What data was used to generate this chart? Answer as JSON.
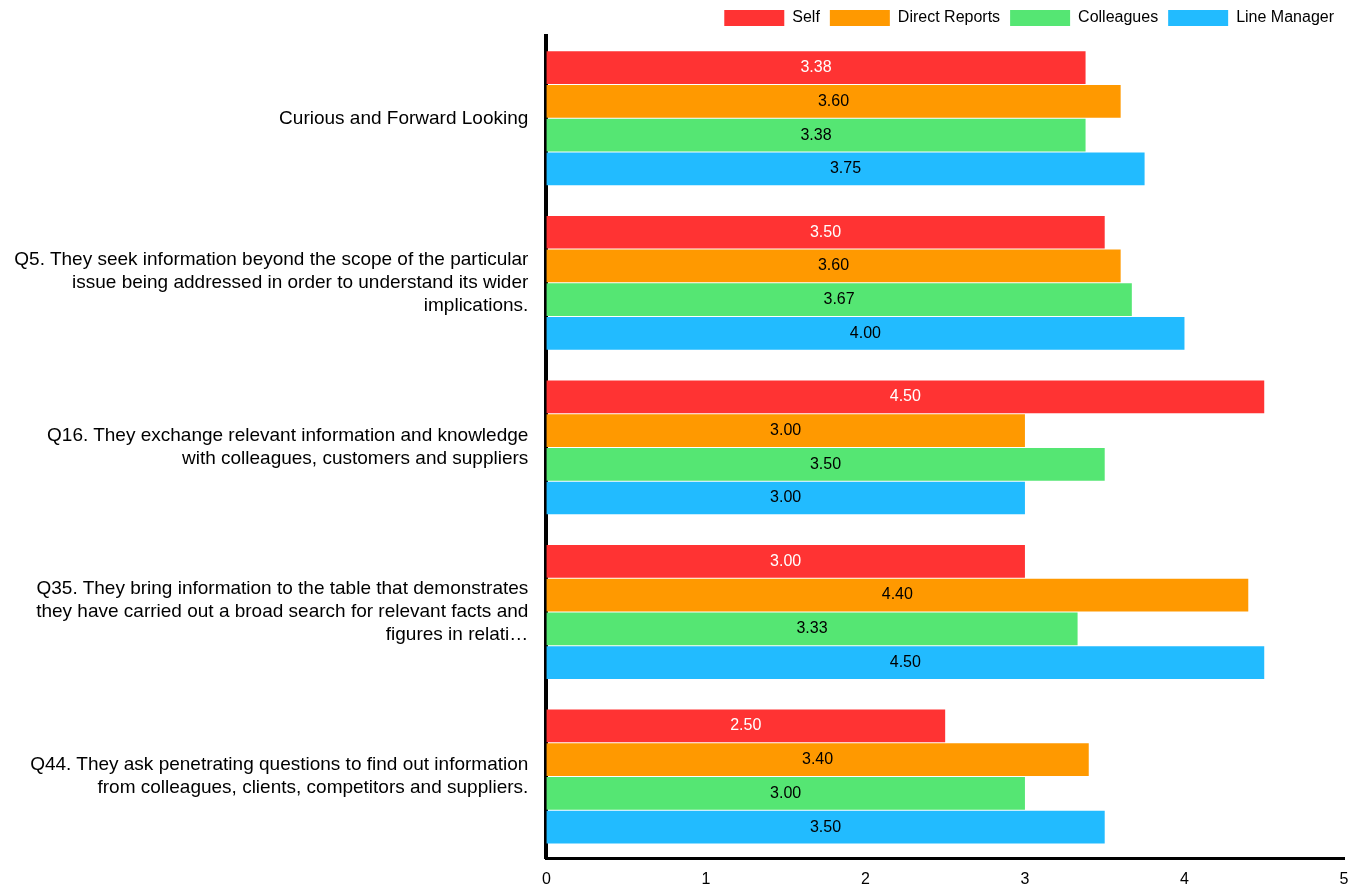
{
  "chart_data": {
    "type": "bar",
    "orientation": "horizontal",
    "categories": [
      "Curious and Forward Looking",
      "Q5. They seek information beyond the scope of the particular issue being addressed in order to understand its wider implications.",
      "Q16. They exchange relevant information and knowledge with colleagues, customers and suppliers",
      "Q35. They bring information to the table that demonstrates they have carried out a broad search for relevant facts and figures in relati…",
      "Q44. They ask penetrating questions to find out information from colleagues, clients, competitors and suppliers."
    ],
    "series": [
      {
        "name": "Self",
        "color": "#ff3333",
        "values": [
          3.38,
          3.5,
          4.5,
          3.0,
          2.5
        ],
        "value_labels": [
          "3.38",
          "3.50",
          "4.50",
          "3.00",
          "2.50"
        ]
      },
      {
        "name": "Direct Reports",
        "color": "#ff9900",
        "values": [
          3.6,
          3.6,
          3.0,
          4.4,
          3.4
        ],
        "value_labels": [
          "3.60",
          "3.60",
          "3.00",
          "4.40",
          "3.40"
        ]
      },
      {
        "name": "Colleagues",
        "color": "#55e673",
        "values": [
          3.38,
          3.67,
          3.5,
          3.33,
          3.0
        ],
        "value_labels": [
          "3.38",
          "3.67",
          "3.50",
          "3.33",
          "3.00"
        ]
      },
      {
        "name": "Line Manager",
        "color": "#22bbff",
        "values": [
          3.75,
          4.0,
          3.0,
          4.5,
          3.5
        ],
        "value_labels": [
          "3.75",
          "4.00",
          "3.00",
          "4.50",
          "3.50"
        ]
      }
    ],
    "xlim": [
      0,
      5
    ],
    "xticks": [
      0,
      1,
      2,
      3,
      4,
      5
    ],
    "grid": false,
    "legend": "top right"
  }
}
